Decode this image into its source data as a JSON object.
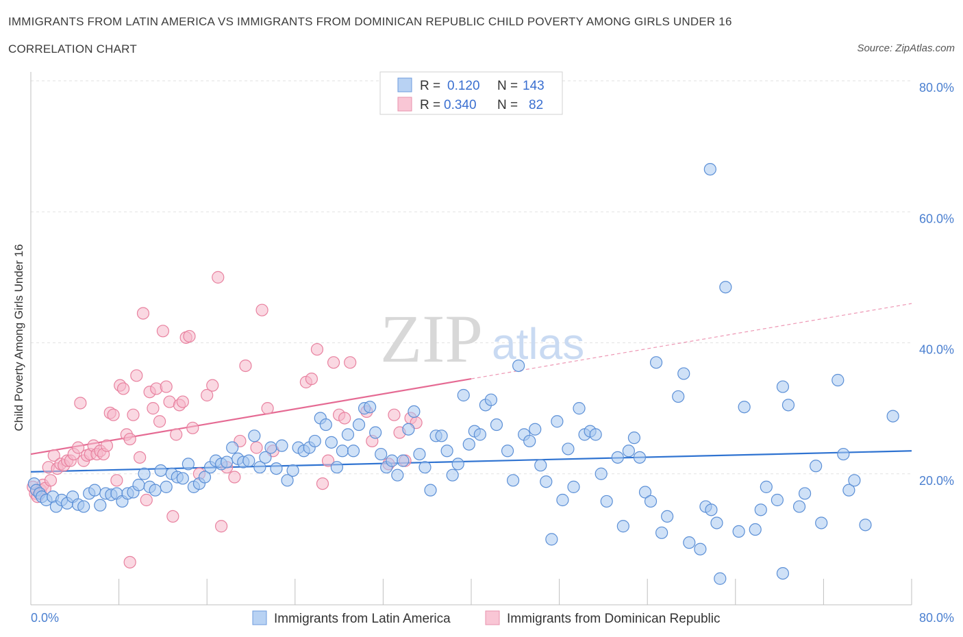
{
  "title": "IMMIGRANTS FROM LATIN AMERICA VS IMMIGRANTS FROM DOMINICAN REPUBLIC CHILD POVERTY AMONG GIRLS UNDER 16",
  "subtitle": "CORRELATION CHART",
  "source": "Source: ZipAtlas.com",
  "watermark": {
    "zip": "ZIP",
    "atlas": "atlas"
  },
  "legend": {
    "row1": {
      "r_label": "R =",
      "r_value": "0.120",
      "n_label": "N =",
      "n_value": "143"
    },
    "row2": {
      "r_label": "R =",
      "r_value": "0.340",
      "n_label": "N =",
      "n_value": "82"
    }
  },
  "colors": {
    "blue_fill": "#a8c8f0",
    "blue_stroke": "#5b8fd6",
    "blue_line": "#2f73d1",
    "pink_fill": "#f6b8cb",
    "pink_stroke": "#e8819f",
    "pink_line": "#e56a93",
    "grid": "#e2e2e2",
    "axis_text": "#4a7fd0"
  },
  "chart_data": {
    "type": "scatter",
    "xlabel": "",
    "ylabel": "Child Poverty Among Girls Under 16",
    "xlim": [
      0,
      80
    ],
    "ylim": [
      0,
      80
    ],
    "x_tick_labels": [
      "0.0%",
      "80.0%"
    ],
    "y_tick_labels": [
      "20.0%",
      "40.0%",
      "60.0%",
      "80.0%"
    ],
    "y_ticks": [
      20,
      40,
      60,
      80
    ],
    "grid": true,
    "legend_position": "top-center",
    "series": [
      {
        "name": "Immigrants from Latin America",
        "color": "#5b8fd6",
        "trend": {
          "x": [
            0,
            80
          ],
          "y": [
            20.3,
            23.5
          ]
        },
        "points": [
          [
            0.3,
            18.5
          ],
          [
            0.5,
            17.5
          ],
          [
            0.8,
            17.0
          ],
          [
            1.0,
            16.5
          ],
          [
            1.4,
            16.0
          ],
          [
            2.0,
            16.5
          ],
          [
            2.3,
            15.0
          ],
          [
            2.8,
            16.0
          ],
          [
            3.3,
            15.5
          ],
          [
            3.8,
            16.5
          ],
          [
            4.3,
            15.3
          ],
          [
            4.8,
            15.0
          ],
          [
            5.3,
            17.0
          ],
          [
            5.8,
            17.5
          ],
          [
            6.3,
            15.2
          ],
          [
            6.8,
            17.0
          ],
          [
            7.3,
            16.8
          ],
          [
            7.8,
            17.0
          ],
          [
            8.3,
            15.8
          ],
          [
            8.8,
            17.0
          ],
          [
            9.3,
            17.2
          ],
          [
            9.8,
            18.3
          ],
          [
            10.3,
            20.0
          ],
          [
            10.8,
            18.0
          ],
          [
            11.3,
            17.5
          ],
          [
            11.8,
            20.5
          ],
          [
            12.3,
            18.0
          ],
          [
            12.8,
            20.0
          ],
          [
            13.3,
            19.5
          ],
          [
            13.8,
            19.3
          ],
          [
            14.3,
            21.5
          ],
          [
            14.8,
            18.0
          ],
          [
            15.3,
            18.5
          ],
          [
            15.8,
            19.5
          ],
          [
            16.3,
            21.0
          ],
          [
            16.8,
            22.0
          ],
          [
            17.3,
            21.5
          ],
          [
            17.8,
            21.8
          ],
          [
            18.3,
            24.0
          ],
          [
            18.8,
            22.3
          ],
          [
            19.3,
            21.8
          ],
          [
            19.8,
            22.0
          ],
          [
            20.3,
            25.8
          ],
          [
            20.8,
            21.0
          ],
          [
            21.3,
            22.5
          ],
          [
            21.8,
            24.0
          ],
          [
            22.3,
            20.8
          ],
          [
            22.8,
            24.3
          ],
          [
            23.3,
            19.0
          ],
          [
            23.8,
            20.5
          ],
          [
            24.3,
            24.0
          ],
          [
            24.8,
            23.5
          ],
          [
            25.3,
            24.0
          ],
          [
            25.8,
            25.0
          ],
          [
            26.3,
            28.5
          ],
          [
            26.8,
            27.5
          ],
          [
            27.3,
            24.8
          ],
          [
            27.8,
            21.0
          ],
          [
            28.3,
            23.5
          ],
          [
            28.8,
            26.0
          ],
          [
            29.3,
            23.5
          ],
          [
            29.8,
            27.5
          ],
          [
            30.3,
            30.0
          ],
          [
            30.8,
            30.2
          ],
          [
            31.3,
            26.3
          ],
          [
            31.8,
            23.0
          ],
          [
            32.3,
            21.0
          ],
          [
            32.8,
            22.0
          ],
          [
            33.3,
            19.8
          ],
          [
            33.8,
            22.0
          ],
          [
            34.3,
            26.8
          ],
          [
            34.8,
            29.5
          ],
          [
            35.3,
            23.0
          ],
          [
            35.8,
            21.0
          ],
          [
            36.3,
            17.5
          ],
          [
            36.8,
            25.8
          ],
          [
            37.3,
            25.8
          ],
          [
            37.8,
            23.5
          ],
          [
            38.3,
            19.8
          ],
          [
            38.8,
            21.5
          ],
          [
            39.3,
            32.0
          ],
          [
            39.8,
            24.5
          ],
          [
            40.3,
            26.5
          ],
          [
            40.8,
            26.0
          ],
          [
            41.3,
            30.5
          ],
          [
            41.8,
            31.3
          ],
          [
            42.3,
            27.5
          ],
          [
            43.3,
            23.5
          ],
          [
            43.8,
            19.0
          ],
          [
            44.3,
            36.5
          ],
          [
            44.8,
            26.0
          ],
          [
            45.3,
            25.0
          ],
          [
            45.8,
            26.8
          ],
          [
            46.3,
            21.3
          ],
          [
            46.8,
            18.8
          ],
          [
            47.3,
            10.0
          ],
          [
            47.8,
            28.0
          ],
          [
            48.3,
            16.0
          ],
          [
            48.8,
            23.8
          ],
          [
            49.3,
            18.0
          ],
          [
            49.8,
            30.0
          ],
          [
            50.3,
            26.0
          ],
          [
            50.8,
            26.5
          ],
          [
            51.3,
            26.0
          ],
          [
            51.8,
            20.0
          ],
          [
            52.3,
            15.8
          ],
          [
            53.3,
            22.5
          ],
          [
            53.8,
            12.0
          ],
          [
            54.3,
            23.5
          ],
          [
            54.8,
            25.5
          ],
          [
            55.3,
            22.5
          ],
          [
            55.8,
            17.2
          ],
          [
            56.3,
            15.8
          ],
          [
            56.8,
            37.0
          ],
          [
            57.3,
            11.0
          ],
          [
            57.8,
            13.5
          ],
          [
            58.8,
            31.8
          ],
          [
            59.3,
            35.3
          ],
          [
            59.8,
            9.5
          ],
          [
            60.8,
            8.5
          ],
          [
            61.3,
            15.0
          ],
          [
            61.8,
            14.5
          ],
          [
            62.3,
            12.5
          ],
          [
            61.7,
            66.5
          ],
          [
            63.1,
            48.5
          ],
          [
            64.3,
            11.2
          ],
          [
            64.8,
            30.2
          ],
          [
            65.8,
            11.5
          ],
          [
            66.3,
            14.5
          ],
          [
            66.8,
            18.0
          ],
          [
            67.8,
            16.0
          ],
          [
            68.3,
            33.3
          ],
          [
            68.3,
            4.8
          ],
          [
            68.8,
            30.5
          ],
          [
            69.8,
            15.0
          ],
          [
            70.3,
            17.0
          ],
          [
            71.3,
            21.2
          ],
          [
            71.8,
            12.5
          ],
          [
            73.3,
            34.3
          ],
          [
            73.8,
            23.0
          ],
          [
            74.3,
            17.5
          ],
          [
            74.8,
            19.0
          ],
          [
            75.8,
            12.2
          ],
          [
            78.3,
            28.8
          ],
          [
            62.6,
            4.0
          ]
        ]
      },
      {
        "name": "Immigrants from Dominican Republic",
        "color": "#e8819f",
        "trend": {
          "x": [
            0,
            40
          ],
          "y": [
            23.0,
            34.5
          ]
        },
        "trend_extension": {
          "x": [
            40,
            80
          ],
          "y": [
            34.5,
            46.0
          ]
        },
        "points": [
          [
            0.2,
            18.0
          ],
          [
            0.4,
            17.0
          ],
          [
            0.6,
            16.5
          ],
          [
            0.9,
            17.5
          ],
          [
            1.1,
            18.3
          ],
          [
            1.3,
            17.8
          ],
          [
            1.6,
            21.0
          ],
          [
            1.8,
            19.0
          ],
          [
            2.1,
            22.8
          ],
          [
            2.4,
            20.8
          ],
          [
            2.7,
            21.5
          ],
          [
            3.0,
            21.3
          ],
          [
            3.3,
            22.0
          ],
          [
            3.6,
            22.0
          ],
          [
            3.9,
            23.0
          ],
          [
            4.3,
            24.0
          ],
          [
            4.5,
            30.8
          ],
          [
            4.8,
            22.0
          ],
          [
            5.1,
            22.8
          ],
          [
            5.4,
            23.0
          ],
          [
            5.7,
            24.3
          ],
          [
            6.0,
            23.0
          ],
          [
            6.3,
            23.5
          ],
          [
            6.6,
            23.0
          ],
          [
            6.9,
            24.3
          ],
          [
            7.2,
            29.3
          ],
          [
            7.5,
            29.0
          ],
          [
            7.8,
            19.0
          ],
          [
            8.1,
            33.5
          ],
          [
            8.4,
            33.0
          ],
          [
            8.7,
            26.0
          ],
          [
            9.0,
            25.3
          ],
          [
            9.3,
            29.0
          ],
          [
            9.6,
            35.0
          ],
          [
            9.9,
            22.5
          ],
          [
            10.2,
            44.5
          ],
          [
            10.5,
            16.0
          ],
          [
            10.8,
            32.5
          ],
          [
            11.1,
            30.0
          ],
          [
            11.4,
            33.0
          ],
          [
            11.7,
            28.0
          ],
          [
            12.0,
            41.8
          ],
          [
            12.3,
            33.3
          ],
          [
            12.6,
            31.0
          ],
          [
            12.9,
            13.5
          ],
          [
            13.2,
            26.0
          ],
          [
            13.5,
            30.5
          ],
          [
            13.8,
            31.0
          ],
          [
            14.1,
            40.8
          ],
          [
            14.4,
            41.0
          ],
          [
            14.7,
            27.0
          ],
          [
            15.3,
            20.0
          ],
          [
            16.0,
            32.0
          ],
          [
            16.5,
            33.5
          ],
          [
            17.0,
            50.0
          ],
          [
            17.3,
            12.0
          ],
          [
            17.8,
            21.0
          ],
          [
            18.5,
            19.5
          ],
          [
            19.0,
            25.0
          ],
          [
            19.5,
            36.5
          ],
          [
            20.5,
            24.0
          ],
          [
            21.0,
            45.0
          ],
          [
            21.5,
            30.0
          ],
          [
            22.0,
            23.5
          ],
          [
            25.0,
            34.0
          ],
          [
            25.5,
            34.5
          ],
          [
            26.0,
            39.0
          ],
          [
            26.5,
            18.5
          ],
          [
            27.0,
            22.0
          ],
          [
            27.5,
            37.0
          ],
          [
            28.0,
            29.0
          ],
          [
            28.5,
            28.5
          ],
          [
            29.0,
            37.0
          ],
          [
            30.5,
            29.5
          ],
          [
            31.0,
            25.0
          ],
          [
            32.5,
            21.5
          ],
          [
            33.0,
            29.0
          ],
          [
            33.5,
            26.3
          ],
          [
            34.0,
            22.0
          ],
          [
            34.5,
            28.5
          ],
          [
            35.0,
            27.8
          ],
          [
            9.0,
            6.5
          ]
        ]
      }
    ]
  },
  "bottom_legend": {
    "item1": "Immigrants from Latin America",
    "item2": "Immigrants from Dominican Republic"
  }
}
